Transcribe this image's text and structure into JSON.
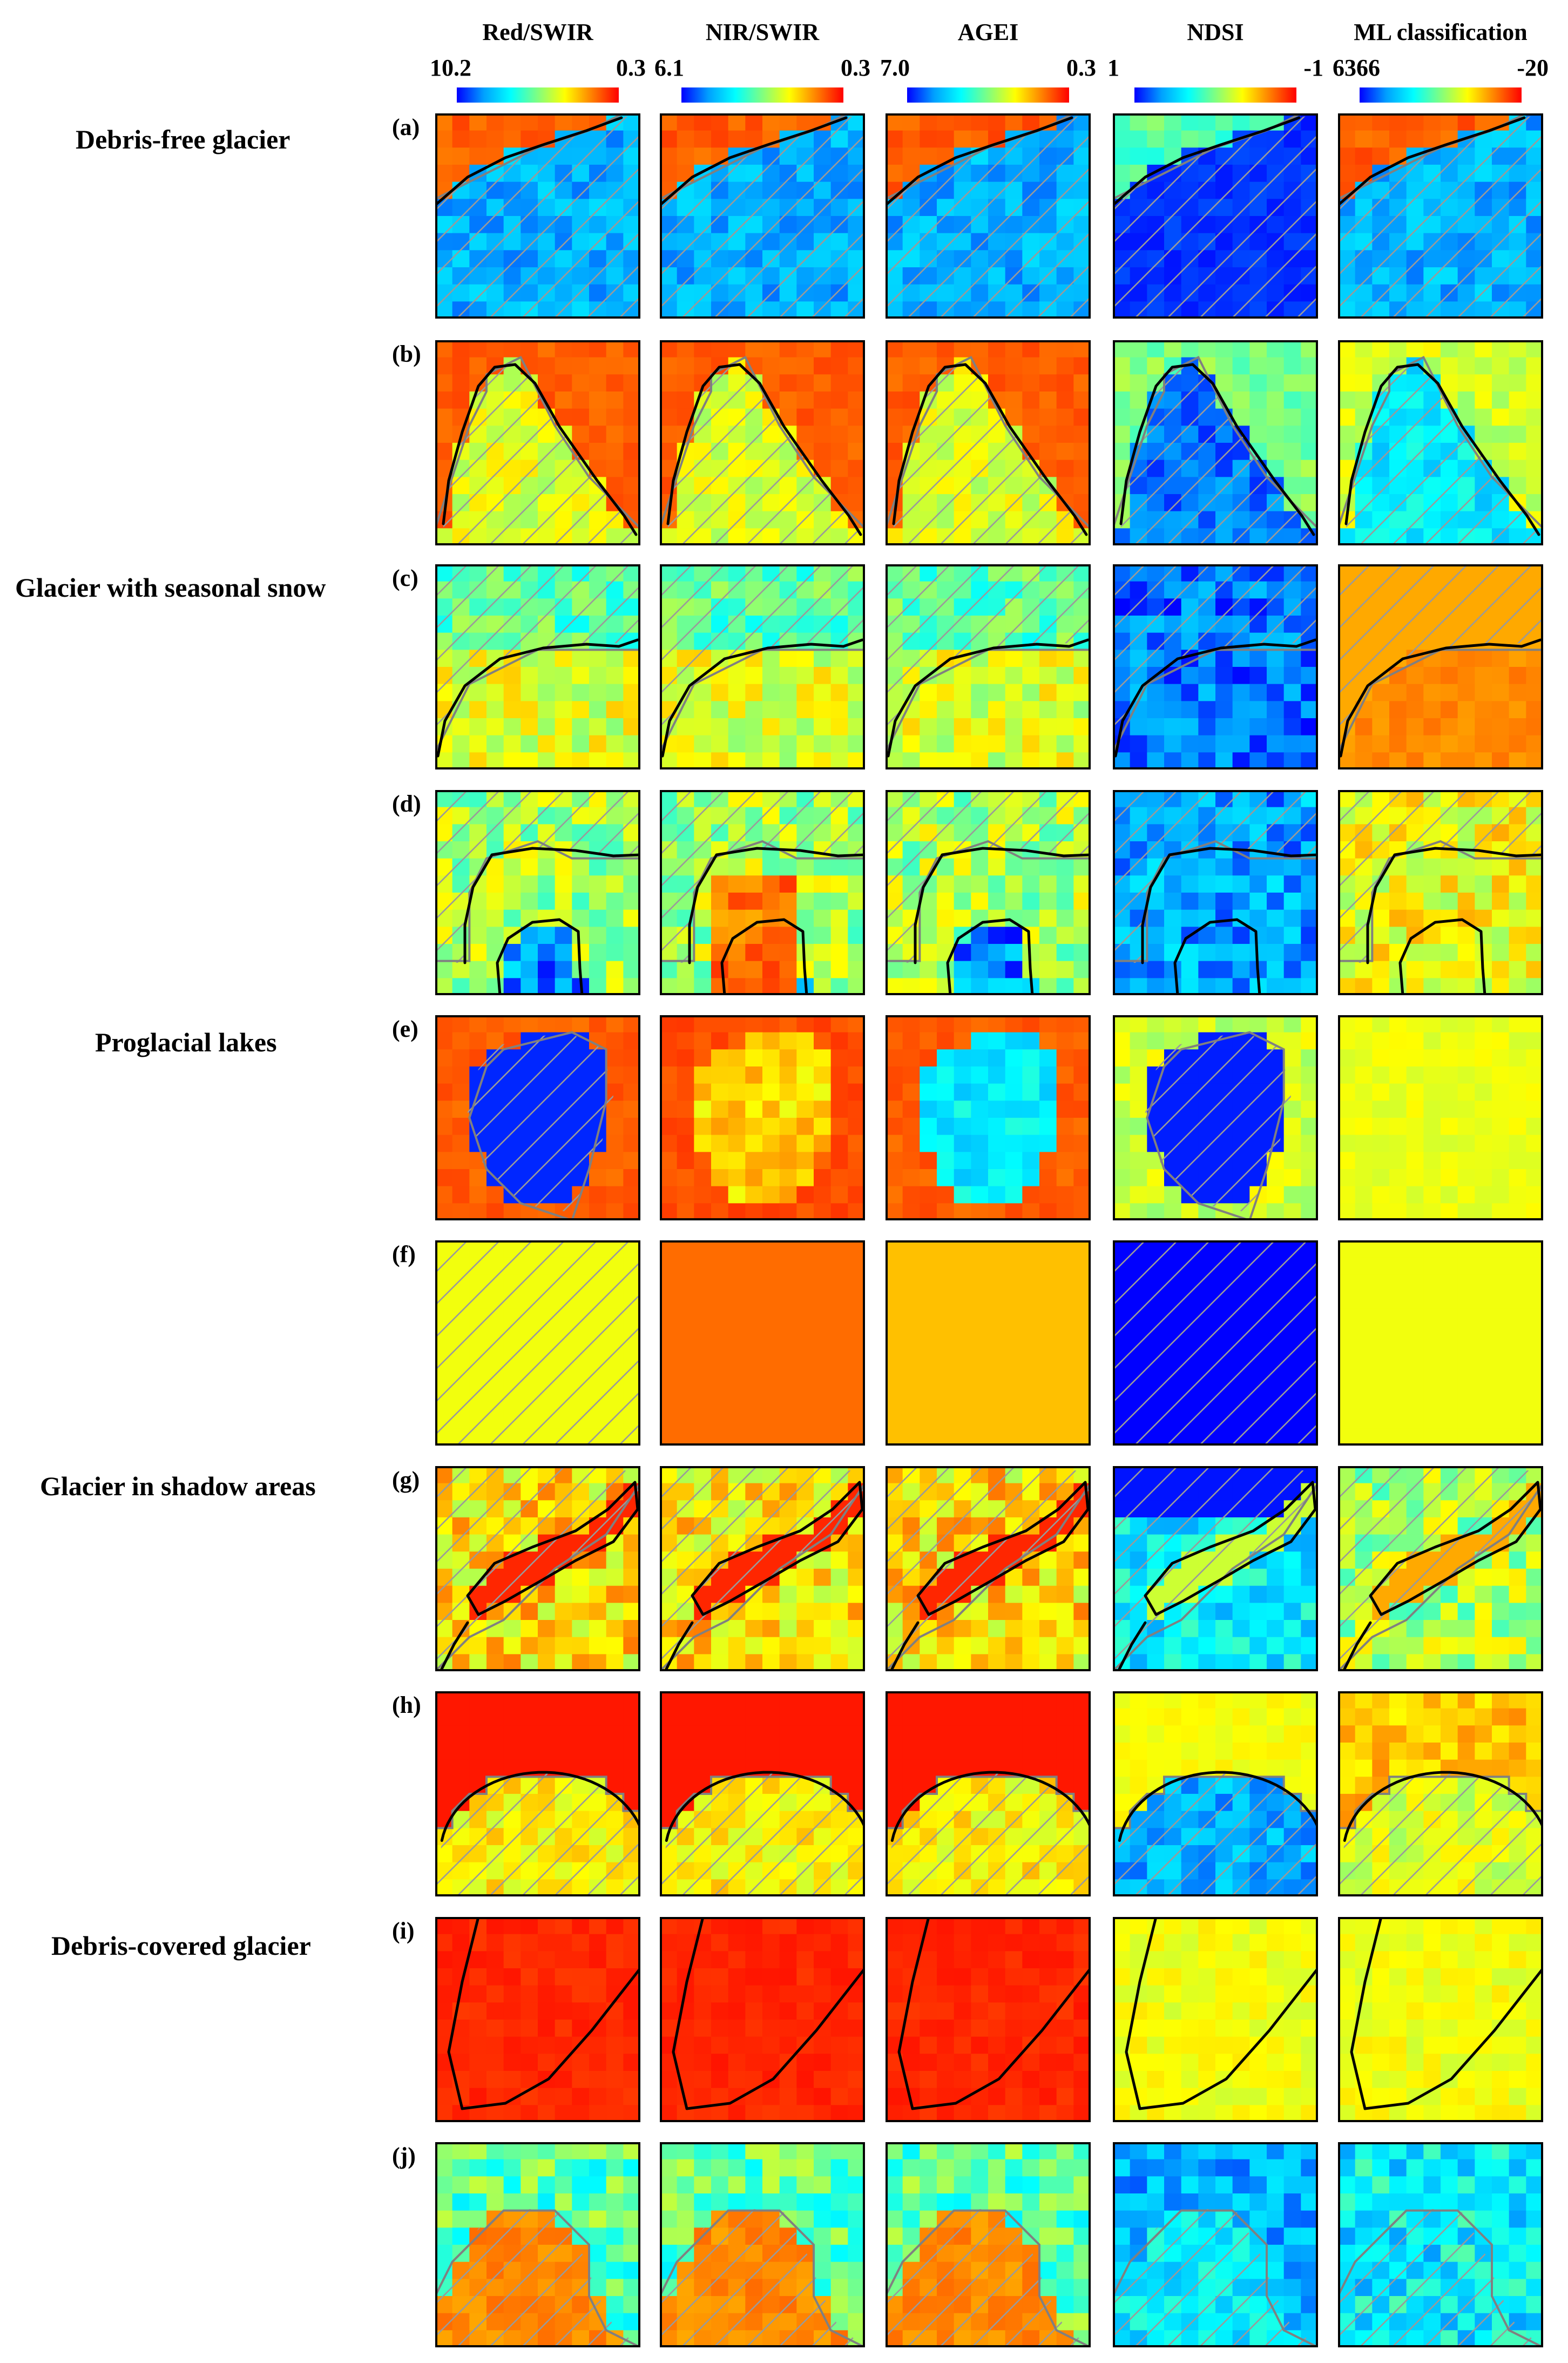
{
  "columns": [
    {
      "title": "Red/SWIR",
      "min": "10.2",
      "max": "0.3"
    },
    {
      "title": "NIR/SWIR",
      "min": "6.1",
      "max": "0.3"
    },
    {
      "title": "AGEI",
      "min": "7.0",
      "max": "0.3"
    },
    {
      "title": "NDSI",
      "min": "1",
      "max": "-1"
    },
    {
      "title": "ML classification",
      "min": "6366",
      "max": "-20"
    }
  ],
  "row_groups": [
    {
      "title": "Debris-free glacier"
    },
    {
      "title": "Glacier with seasonal snow"
    },
    {
      "title": "Proglacial lakes"
    },
    {
      "title": "Glacier in shadow areas"
    },
    {
      "title": "Debris-covered glacier"
    }
  ],
  "rows": [
    {
      "label": "(a)",
      "scene": "debris-free-diagonal"
    },
    {
      "label": "(b)",
      "scene": "debris-free-tongue"
    },
    {
      "label": "(c)",
      "scene": "seasonal-snow-upper"
    },
    {
      "label": "(d)",
      "scene": "seasonal-snow-branches"
    },
    {
      "label": "(e)",
      "scene": "proglacial-lake"
    },
    {
      "label": "(f)",
      "scene": "proglacial-lake-uniform"
    },
    {
      "label": "(g)",
      "scene": "shadow-band"
    },
    {
      "label": "(h)",
      "scene": "shadow-dome"
    },
    {
      "label": "(i)",
      "scene": "debris-covered-tongue"
    },
    {
      "label": "(j)",
      "scene": "debris-covered-mixed"
    }
  ],
  "colors": {
    "colorbar": [
      "#0000ff",
      "#00a0ff",
      "#00ffff",
      "#80ff80",
      "#ffff00",
      "#ff8000",
      "#ff0000"
    ],
    "glacier_outline": "#000000",
    "classified_boundary": "#808080",
    "hatch": "#9a9a9a"
  }
}
